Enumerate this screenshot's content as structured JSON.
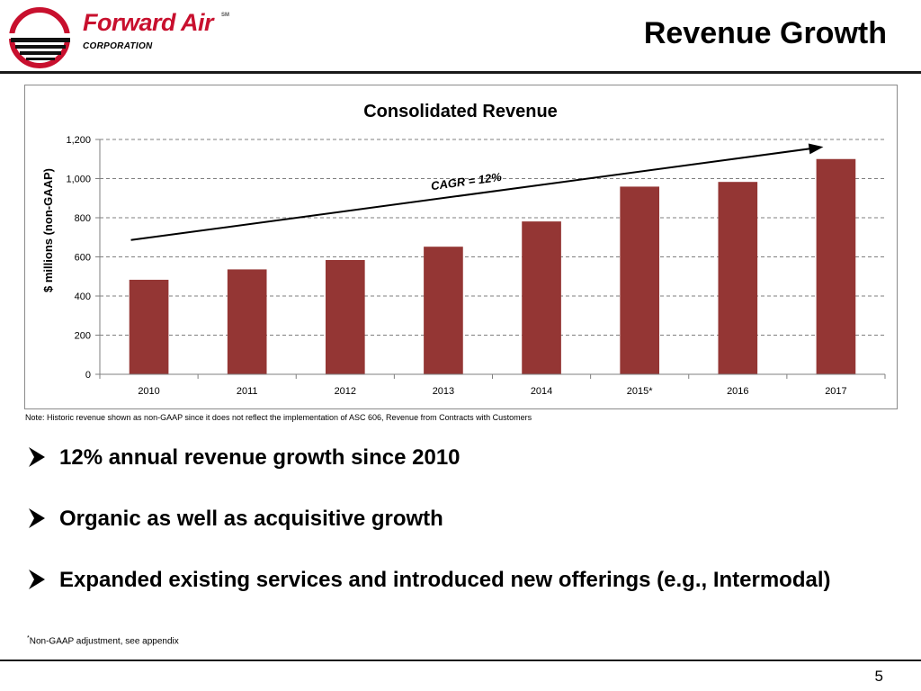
{
  "header": {
    "logo": {
      "wordmark": "Forward Air",
      "trademark": "SM",
      "subtitle": "CORPORATION"
    },
    "title": "Revenue Growth"
  },
  "colors": {
    "bar": "#943634",
    "logo_red": "#c8102e",
    "rule": "#1a1a1a"
  },
  "chart_data": {
    "type": "bar",
    "title": "Consolidated Revenue",
    "ylabel": "$ millions  (non-GAAP)",
    "xlabel": "",
    "categories": [
      "2010",
      "2011",
      "2012",
      "2013",
      "2014",
      "2015*",
      "2016",
      "2017"
    ],
    "values": [
      483,
      536,
      584,
      652,
      781,
      959,
      983,
      1100
    ],
    "ylim": [
      0,
      1200
    ],
    "yticks": [
      0,
      200,
      400,
      600,
      800,
      1000,
      1200
    ],
    "ytick_labels": [
      "0",
      "200",
      "400",
      "600",
      "800",
      "1,000",
      "1,200"
    ],
    "grid": "horizontal dashed",
    "annotation": {
      "text": "CAGR = 12%",
      "arrow_from": {
        "x": "2010",
        "y": 686
      },
      "arrow_to": {
        "x": "2017",
        "y": 1162
      }
    }
  },
  "note": "Note:  Historic revenue shown as non-GAAP since it does not reflect the implementation of ASC 606, Revenue from Contracts with Customers",
  "bullets": [
    "12% annual revenue growth since 2010",
    "Organic as well as acquisitive growth",
    "Expanded existing services and introduced new offerings (e.g., Intermodal)"
  ],
  "footnote": {
    "marker": "*",
    "text": "Non-GAAP adjustment, see appendix"
  },
  "page_number": "5"
}
